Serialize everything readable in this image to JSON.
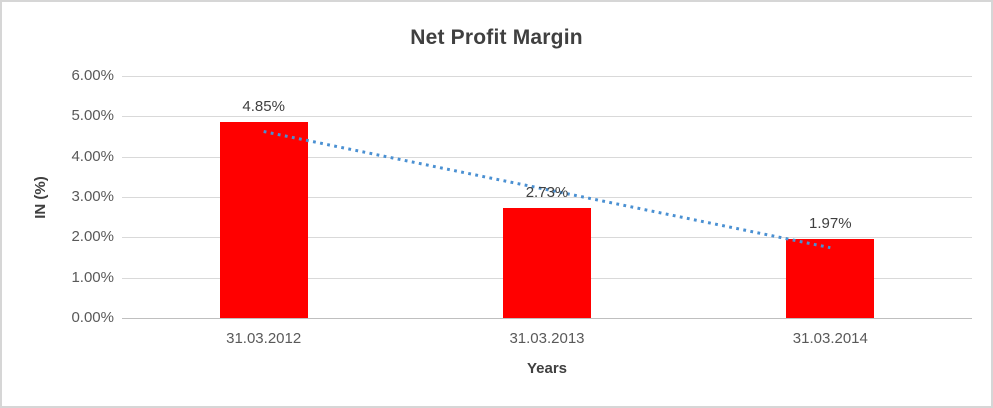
{
  "chart_data": {
    "type": "bar",
    "title": "Net Profit Margin",
    "xlabel": "Years",
    "ylabel": "IN (%)",
    "categories": [
      "31.03.2012",
      "31.03.2013",
      "31.03.2014"
    ],
    "values": [
      4.85,
      2.73,
      1.97
    ],
    "data_labels": [
      "4.85%",
      "2.73%",
      "1.97%"
    ],
    "ylim": [
      0,
      6
    ],
    "ytick_step": 1,
    "ytick_labels": [
      "0.00%",
      "1.00%",
      "2.00%",
      "3.00%",
      "4.00%",
      "5.00%",
      "6.00%"
    ],
    "grid": true,
    "legend": "none",
    "trendline": {
      "type": "linear",
      "style": "dotted"
    },
    "colors": {
      "bar": "#ff0000",
      "trendline": "#4a90d2",
      "gridline": "#d9d9d9",
      "axis_line": "#bfbfbf",
      "tick_text": "#595959",
      "title_text": "#404040"
    }
  }
}
